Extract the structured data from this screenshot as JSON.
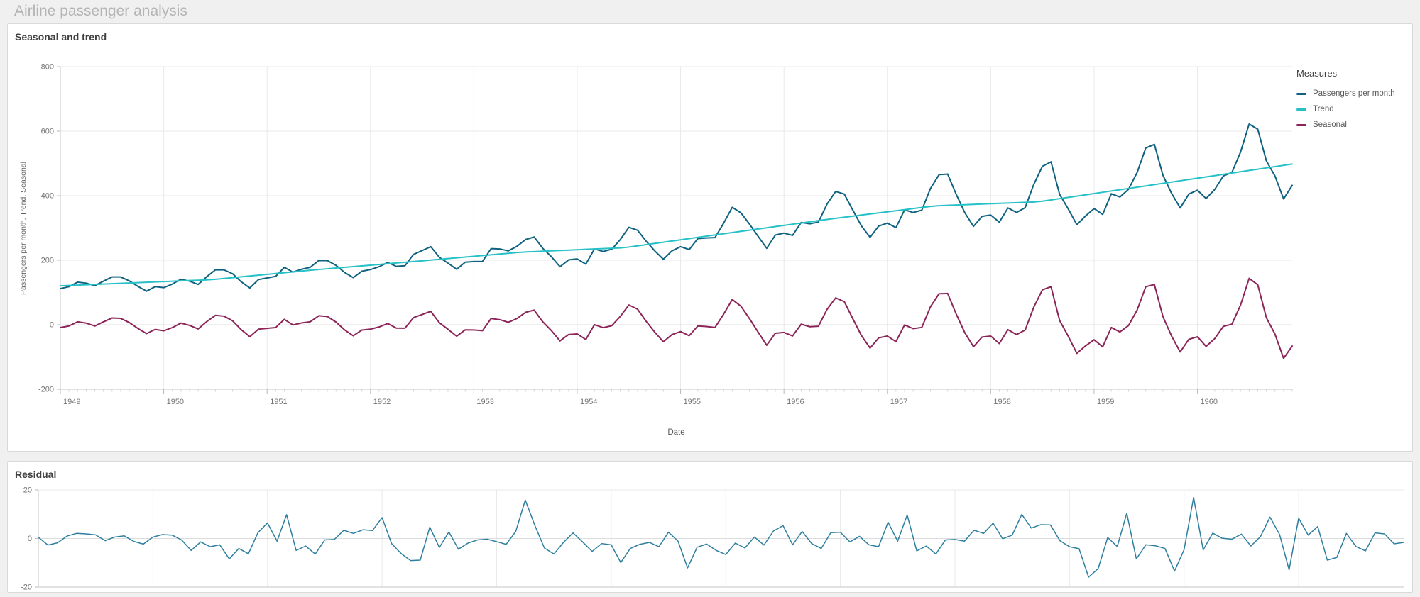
{
  "page": {
    "title": "Airline passenger analysis",
    "background": "#f0f0f0"
  },
  "colors": {
    "passengers": "#0f627f",
    "trend": "#26c0c7",
    "seasonal": "#8c2458",
    "residual": "#2e7f9f",
    "grid": "#e9e9e9",
    "zero_grid": "#dcdcdc",
    "axis": "#c6c6c6",
    "tick_text": "#737373"
  },
  "charts": {
    "seasonal_trend": {
      "title": "Seasonal and trend",
      "legend_title": "Measures",
      "chart_data": {
        "type": "line",
        "x_unit": "month",
        "x_start": "1949-01",
        "x_end": "1960-12",
        "x_tick_labels": [
          "1949",
          "1950",
          "1951",
          "1952",
          "1953",
          "1954",
          "1955",
          "1956",
          "1957",
          "1958",
          "1959",
          "1960"
        ],
        "xlabel": "Date",
        "ylabel": "Passengers per month, Trend, Seasonal",
        "ylim": [
          -200,
          800
        ],
        "y_ticks": [
          800,
          600,
          400,
          200,
          0,
          -200
        ],
        "grid": true,
        "legend_position": "right",
        "series": [
          {
            "name": "Passengers per month",
            "color": "#0f627f",
            "values": [
              112,
              118,
              132,
              129,
              121,
              135,
              148,
              148,
              136,
              119,
              104,
              118,
              115,
              126,
              141,
              135,
              125,
              149,
              170,
              170,
              158,
              133,
              114,
              140,
              145,
              150,
              178,
              163,
              172,
              178,
              199,
              199,
              184,
              162,
              146,
              166,
              171,
              180,
              193,
              181,
              183,
              218,
              230,
              242,
              209,
              191,
              172,
              194,
              196,
              196,
              236,
              235,
              229,
              243,
              264,
              272,
              237,
              211,
              180,
              201,
              204,
              188,
              235,
              227,
              234,
              264,
              302,
              293,
              259,
              229,
              203,
              229,
              242,
              233,
              267,
              269,
              270,
              315,
              364,
              347,
              312,
              274,
              237,
              278,
              284,
              277,
              317,
              313,
              318,
              374,
              413,
              405,
              355,
              306,
              271,
              306,
              315,
              301,
              356,
              348,
              355,
              422,
              465,
              467,
              404,
              347,
              305,
              336,
              340,
              318,
              362,
              348,
              363,
              435,
              491,
              505,
              404,
              359,
              310,
              337,
              360,
              342,
              406,
              396,
              420,
              472,
              548,
              559,
              463,
              407,
              362,
              405,
              417,
              391,
              419,
              461,
              472,
              535,
              622,
              606,
              508,
              461,
              390,
              432
            ]
          },
          {
            "name": "Trend",
            "color": "#26c0c7",
            "values": [
              120.7,
              121.8,
              122.9,
              124.0,
              125.0,
              126.1,
              127.2,
              128.3,
              129.3,
              130.4,
              131.5,
              132.6,
              133.7,
              134.8,
              135.9,
              137.0,
              138.0,
              139.1,
              140.9,
              143.5,
              146.0,
              148.5,
              151.1,
              153.6,
              156.2,
              158.7,
              161.3,
              163.8,
              166.4,
              168.9,
              171.3,
              173.5,
              175.8,
              178.0,
              180.2,
              182.5,
              184.7,
              186.9,
              189.2,
              191.4,
              193.6,
              195.9,
              198.2,
              200.5,
              202.8,
              205.2,
              207.5,
              209.8,
              212.2,
              214.5,
              216.8,
              219.2,
              221.5,
              223.8,
              225.6,
              226.7,
              227.9,
              229.1,
              230.2,
              231.4,
              232.5,
              233.7,
              234.8,
              236.0,
              237.2,
              238.3,
              240.8,
              244.6,
              248.3,
              252.1,
              255.8,
              259.6,
              263.3,
              267.1,
              270.8,
              274.6,
              278.4,
              282.1,
              285.8,
              289.5,
              293.2,
              296.9,
              300.6,
              304.3,
              308.0,
              311.7,
              315.3,
              319.0,
              322.7,
              326.4,
              329.9,
              333.3,
              336.6,
              340.0,
              343.3,
              346.7,
              350.0,
              353.4,
              356.7,
              360.1,
              363.4,
              366.7,
              369.0,
              370.0,
              371.1,
              372.1,
              373.2,
              374.2,
              375.2,
              376.3,
              377.3,
              378.4,
              379.4,
              380.5,
              383.0,
              386.9,
              390.9,
              394.8,
              398.7,
              402.7,
              406.6,
              410.6,
              414.5,
              418.4,
              422.4,
              426.3,
              430.3,
              434.3,
              438.3,
              442.3,
              446.3,
              450.2,
              454.2,
              458.2,
              462.2,
              466.2,
              470.2,
              474.2,
              478.2,
              482.2,
              486.1,
              490.1,
              494.1,
              498.1
            ]
          },
          {
            "name": "Seasonal",
            "color": "#8c2458",
            "values": [
              -8.7,
              -3.8,
              9.1,
              5.0,
              -4.0,
              8.9,
              20.8,
              19.7,
              6.7,
              -11.4,
              -27.5,
              -14.6,
              -18.7,
              -8.8,
              5.1,
              -2.0,
              -13.0,
              9.9,
              29.1,
              26.5,
              12.0,
              -15.5,
              -37.1,
              -13.6,
              -11.2,
              -8.7,
              16.7,
              -0.8,
              5.6,
              9.1,
              27.7,
              25.5,
              8.2,
              -16.0,
              -34.2,
              -16.5,
              -13.7,
              -6.9,
              3.8,
              -10.4,
              -10.6,
              22.1,
              31.8,
              41.5,
              6.2,
              -14.2,
              -35.5,
              -15.8,
              -16.2,
              -18.5,
              19.2,
              15.8,
              7.5,
              19.2,
              38.4,
              45.3,
              9.1,
              -18.1,
              -50.2,
              -30.4,
              -28.5,
              -45.7,
              0.2,
              -9.0,
              -3.2,
              25.7,
              61.2,
              48.4,
              10.7,
              -23.1,
              -52.8,
              -30.6,
              -21.3,
              -34.1,
              -3.8,
              -5.6,
              -8.4,
              32.9,
              78.2,
              57.5,
              18.8,
              -22.9,
              -63.6,
              -26.3,
              -24.0,
              -34.7,
              1.7,
              -6.0,
              -4.7,
              47.6,
              83.1,
              71.7,
              18.4,
              -34.0,
              -72.3,
              -40.7,
              -35.0,
              -52.4,
              -0.7,
              -12.1,
              -8.4,
              55.3,
              96.0,
              97.0,
              32.9,
              -25.1,
              -68.2,
              -38.2,
              -35.2,
              -58.3,
              -15.3,
              -30.4,
              -16.4,
              54.5,
              108.0,
              118.1,
              13.1,
              -35.8,
              -88.7,
              -65.7,
              -46.6,
              -68.6,
              -8.5,
              -22.4,
              -2.4,
              45.7,
              117.7,
              124.7,
              24.7,
              -35.3,
              -84.3,
              -45.2,
              -37.2,
              -67.2,
              -43.2,
              -5.2,
              1.8,
              60.8,
              143.8,
              123.8,
              21.9,
              -29.1,
              -104.1,
              -66.1
            ]
          }
        ]
      }
    },
    "residual": {
      "title": "Residual",
      "chart_data": {
        "type": "line",
        "x_unit": "month",
        "x_start": "1949-01",
        "x_end": "1960-12",
        "x_tick_labels": [],
        "xlabel": "",
        "ylabel": "",
        "ylim": [
          -20,
          20
        ],
        "y_ticks": [
          20,
          0,
          -20
        ],
        "grid": true,
        "legend_position": "none",
        "series": [
          {
            "name": "Residual",
            "color": "#2e7f9f",
            "values": [
              0.5,
              -2.7,
              -1.8,
              1.0,
              2.1,
              1.9,
              1.5,
              -0.9,
              0.6,
              1.1,
              -1.2,
              -2.3,
              0.6,
              1.6,
              1.4,
              -0.6,
              -4.9,
              -1.4,
              -3.4,
              -2.6,
              -8.4,
              -4.1,
              -6.3,
              2.4,
              6.4,
              -1.1,
              9.8,
              -4.9,
              -3.1,
              -6.4,
              -0.6,
              -0.4,
              3.4,
              2.1,
              3.6,
              3.3,
              8.6,
              -2.1,
              -6.2,
              -9.1,
              -8.9,
              4.7,
              -3.7,
              2.7,
              -4.4,
              -1.9,
              -0.6,
              -0.3,
              -1.3,
              -2.4,
              2.9,
              15.8,
              5.4,
              -3.9,
              -6.4,
              -1.6,
              2.3,
              -1.4,
              -5.3,
              -2.1,
              -2.6,
              -9.9,
              -4.1,
              -2.4,
              -1.6,
              -3.4,
              2.6,
              -1.1,
              -12.1,
              -3.6,
              -2.3,
              -4.9,
              -6.6,
              -1.9,
              -3.9,
              0.6,
              -2.7,
              3.1,
              5.3,
              -2.6,
              2.9,
              -2.1,
              -4.1,
              2.4,
              2.6,
              -1.4,
              0.9,
              -2.6,
              -3.4,
              6.7,
              -1.1,
              9.7,
              -5.1,
              -3.1,
              -6.4,
              -0.6,
              -0.4,
              -1.1,
              3.4,
              2.1,
              6.3,
              -0.1,
              1.4,
              9.9,
              4.3,
              5.7,
              5.6,
              -0.9,
              -3.4,
              -4.2,
              -15.9,
              -12.4,
              0.4,
              -3.3,
              10.4,
              -8.4,
              -2.6,
              -3.0,
              -4.1,
              -13.4,
              -4.6,
              16.9,
              -4.7,
              2.2,
              0.1,
              -0.3,
              1.8,
              -3.1,
              0.8,
              8.8,
              1.7,
              -12.9,
              8.4,
              1.4,
              4.9,
              -8.9,
              -7.8,
              2.1,
              -3.3,
              -5.1,
              2.3,
              1.9,
              -2.2,
              -1.6
            ]
          }
        ]
      }
    }
  }
}
